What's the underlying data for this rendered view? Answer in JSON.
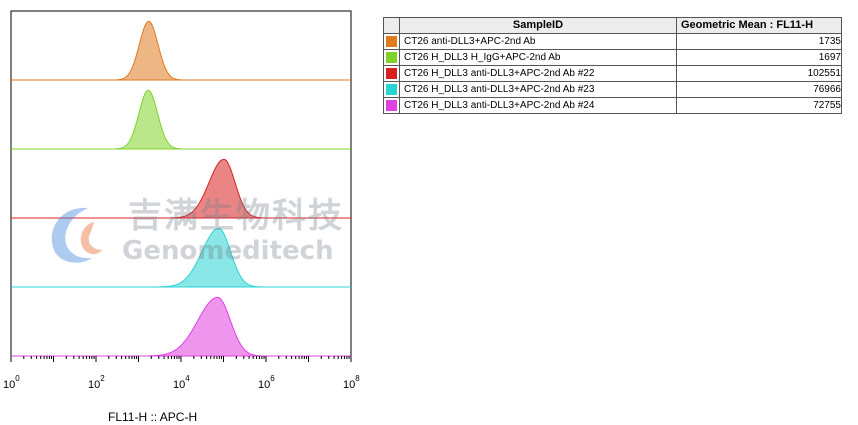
{
  "chart_data": {
    "type": "histogram-overlay",
    "xlabel": "FL11-H :: APC-H",
    "xscale": "log",
    "xlim": [
      1,
      100000000
    ],
    "ticks": [
      {
        "base": "10",
        "exp": "0",
        "value": 1
      },
      {
        "base": "10",
        "exp": "2",
        "value": 100
      },
      {
        "base": "10",
        "exp": "4",
        "value": 10000
      },
      {
        "base": "10",
        "exp": "6",
        "value": 1000000
      },
      {
        "base": "10",
        "exp": "8",
        "value": 100000000
      }
    ],
    "series": [
      {
        "name": "CT26 anti-DLL3+APC-2nd Ab",
        "color": "#e07a1f",
        "peak_x": 1735,
        "spread": 0.22,
        "skew": 0.0,
        "geo_mean": "1735"
      },
      {
        "name": "CT26 H_DLL3 H_IgG+APC-2nd Ab",
        "color": "#7fd32a",
        "peak_x": 1697,
        "spread": 0.22,
        "skew": 0.0,
        "geo_mean": "1697"
      },
      {
        "name": "CT26 H_DLL3 anti-DLL3+APC-2nd Ab #22",
        "color": "#d92020",
        "peak_x": 102551,
        "spread": 0.26,
        "skew": 0.35,
        "geo_mean": "102551"
      },
      {
        "name": "CT26 H_DLL3 anti-DLL3+APC-2nd Ab #23",
        "color": "#28d4d4",
        "peak_x": 76966,
        "spread": 0.28,
        "skew": 0.4,
        "geo_mean": "76966"
      },
      {
        "name": "CT26 H_DLL3 anti-DLL3+APC-2nd Ab #24",
        "color": "#e040e0",
        "peak_x": 72755,
        "spread": 0.3,
        "skew": 0.55,
        "geo_mean": "72755"
      }
    ]
  },
  "table": {
    "col_sample": "SampleID",
    "col_value": "Geometric Mean : FL11-H"
  },
  "watermark": {
    "cn": "吉满生物科技",
    "en": "Genomeditech"
  }
}
